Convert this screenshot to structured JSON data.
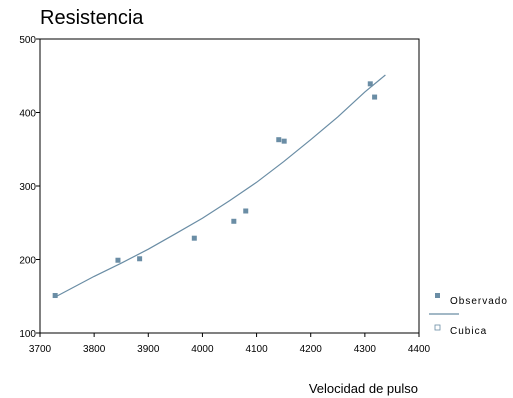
{
  "chart_data": {
    "type": "scatter",
    "title": "Resistencia",
    "xlabel": "Velocidad de pulso",
    "ylabel": "",
    "xlim": [
      3700,
      4400
    ],
    "ylim": [
      100,
      500
    ],
    "xticks": [
      3700,
      3800,
      3900,
      4000,
      4100,
      4200,
      4300,
      4400
    ],
    "xtick_labels": [
      "3700",
      "3800",
      "3900",
      "4000",
      "4100",
      "4200",
      "4300",
      "4400"
    ],
    "yticks": [
      100,
      200,
      300,
      400,
      500
    ],
    "ytick_labels": [
      "100",
      "200",
      "300",
      "400",
      "500"
    ],
    "grid": false,
    "legend_position": "bottom-right",
    "series": [
      {
        "name": "Observado",
        "kind": "scatter",
        "color": "#6a8da5",
        "x": [
          3728,
          3844,
          3884,
          3985,
          4058,
          4080,
          4141,
          4151,
          4310,
          4318
        ],
        "y": [
          151,
          199,
          201,
          229,
          252,
          266,
          363,
          361,
          439,
          421
        ]
      },
      {
        "name": "Cubica",
        "kind": "line",
        "color": "#6a8da5",
        "x": [
          3728,
          3800,
          3850,
          3900,
          3950,
          4000,
          4050,
          4100,
          4150,
          4200,
          4250,
          4300,
          4338
        ],
        "y": [
          149,
          177,
          195,
          214,
          235,
          256,
          280,
          305,
          333,
          363,
          394,
          428,
          451
        ]
      }
    ]
  }
}
